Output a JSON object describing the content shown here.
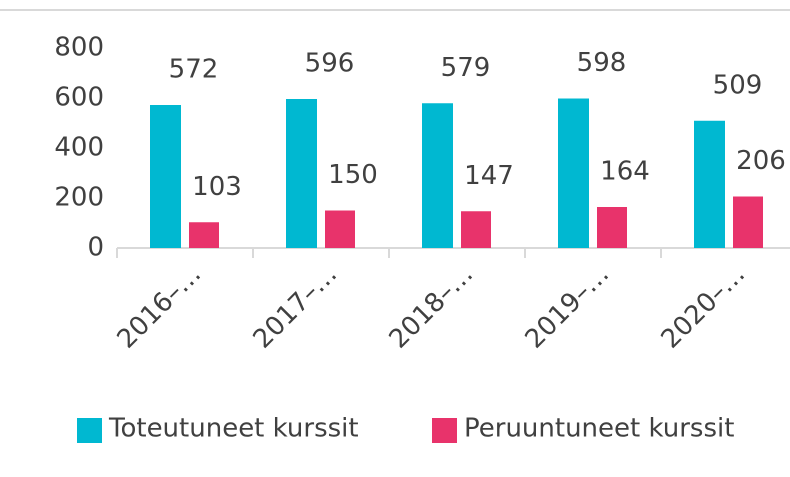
{
  "chart_data": {
    "type": "bar",
    "categories": [
      "2016–…",
      "2017–…",
      "2018–…",
      "2019–…",
      "2020–…"
    ],
    "series": [
      {
        "name": "Toteutuneet kurssit",
        "color": "#00b8d1",
        "values": [
          572,
          596,
          579,
          598,
          509
        ]
      },
      {
        "name": "Peruuntuneet kurssit",
        "color": "#e8336b",
        "values": [
          103,
          150,
          147,
          164,
          206
        ]
      }
    ],
    "ylim": [
      0,
      800
    ],
    "yticks": [
      0,
      200,
      400,
      600,
      800
    ],
    "grid": false
  }
}
